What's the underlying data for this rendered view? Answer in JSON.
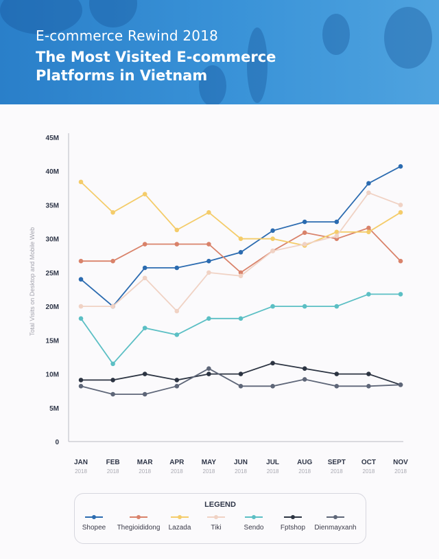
{
  "header": {
    "subtitle": "E-commerce Rewind 2018",
    "title": "The Most Visited E-commerce Platforms in Vietnam"
  },
  "legend_title": "LEGEND",
  "chart_data": {
    "type": "line",
    "categories": [
      "JAN",
      "FEB",
      "MAR",
      "APR",
      "MAY",
      "JUN",
      "JUL",
      "AUG",
      "SEPT",
      "OCT",
      "NOV"
    ],
    "category_year": "2018",
    "ylabel": "Total Visits on Desktop and Mobile Web",
    "ylim": [
      0,
      45
    ],
    "yticks": [
      "0",
      "5M",
      "10M",
      "15M",
      "20M",
      "25M",
      "30M",
      "35M",
      "40M",
      "45M"
    ],
    "grid": false,
    "legend_position": "bottom",
    "series": [
      {
        "name": "Shopee",
        "color": "#2b6bb0",
        "values": [
          24,
          20,
          25.7,
          25.7,
          26.7,
          28,
          31.2,
          32.5,
          32.5,
          38.2,
          40.7
        ]
      },
      {
        "name": "Thegioididong",
        "color": "#d9826a",
        "values": [
          26.7,
          26.7,
          29.2,
          29.2,
          29.2,
          25,
          28.2,
          30.9,
          30,
          31.6,
          26.7
        ]
      },
      {
        "name": "Lazada",
        "color": "#f4cc6a",
        "values": [
          38.4,
          33.9,
          36.6,
          31.3,
          33.9,
          30,
          30,
          29,
          31,
          31,
          33.9
        ]
      },
      {
        "name": "Tiki",
        "color": "#f0d2c4",
        "values": [
          20,
          20,
          24.2,
          19.3,
          25,
          24.5,
          28.2,
          29.2,
          30.4,
          36.8,
          35
        ]
      },
      {
        "name": "Sendo",
        "color": "#5bbfc4",
        "values": [
          18.2,
          11.5,
          16.8,
          15.8,
          18.2,
          18.2,
          20,
          20,
          20,
          21.8,
          21.8
        ]
      },
      {
        "name": "Fptshop",
        "color": "#2c3442",
        "values": [
          9.1,
          9.1,
          10,
          9.1,
          10,
          10,
          11.6,
          10.8,
          10,
          10,
          8.4
        ]
      },
      {
        "name": "Dienmayxanh",
        "color": "#5e6678",
        "values": [
          8.2,
          7,
          7,
          8.2,
          10.8,
          8.2,
          8.2,
          9.2,
          8.2,
          8.2,
          8.4
        ]
      }
    ]
  }
}
